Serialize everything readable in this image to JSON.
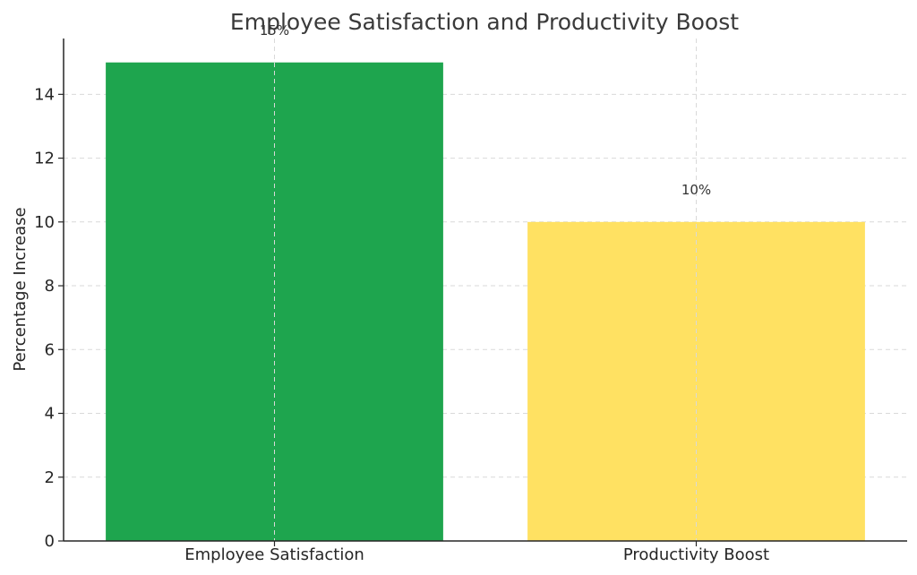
{
  "chart_data": {
    "type": "bar",
    "title": "Employee Satisfaction and Productivity Boost",
    "xlabel": "",
    "ylabel": "Percentage Increase",
    "categories": [
      "Employee Satisfaction",
      "Productivity Boost"
    ],
    "values": [
      15,
      10
    ],
    "data_labels": [
      "15%",
      "10%"
    ],
    "colors": [
      "#1ea54e",
      "#ffe162"
    ],
    "ylim": [
      0,
      15.75
    ],
    "yticks": [
      0,
      2,
      4,
      6,
      8,
      10,
      12,
      14
    ],
    "grid": true
  }
}
